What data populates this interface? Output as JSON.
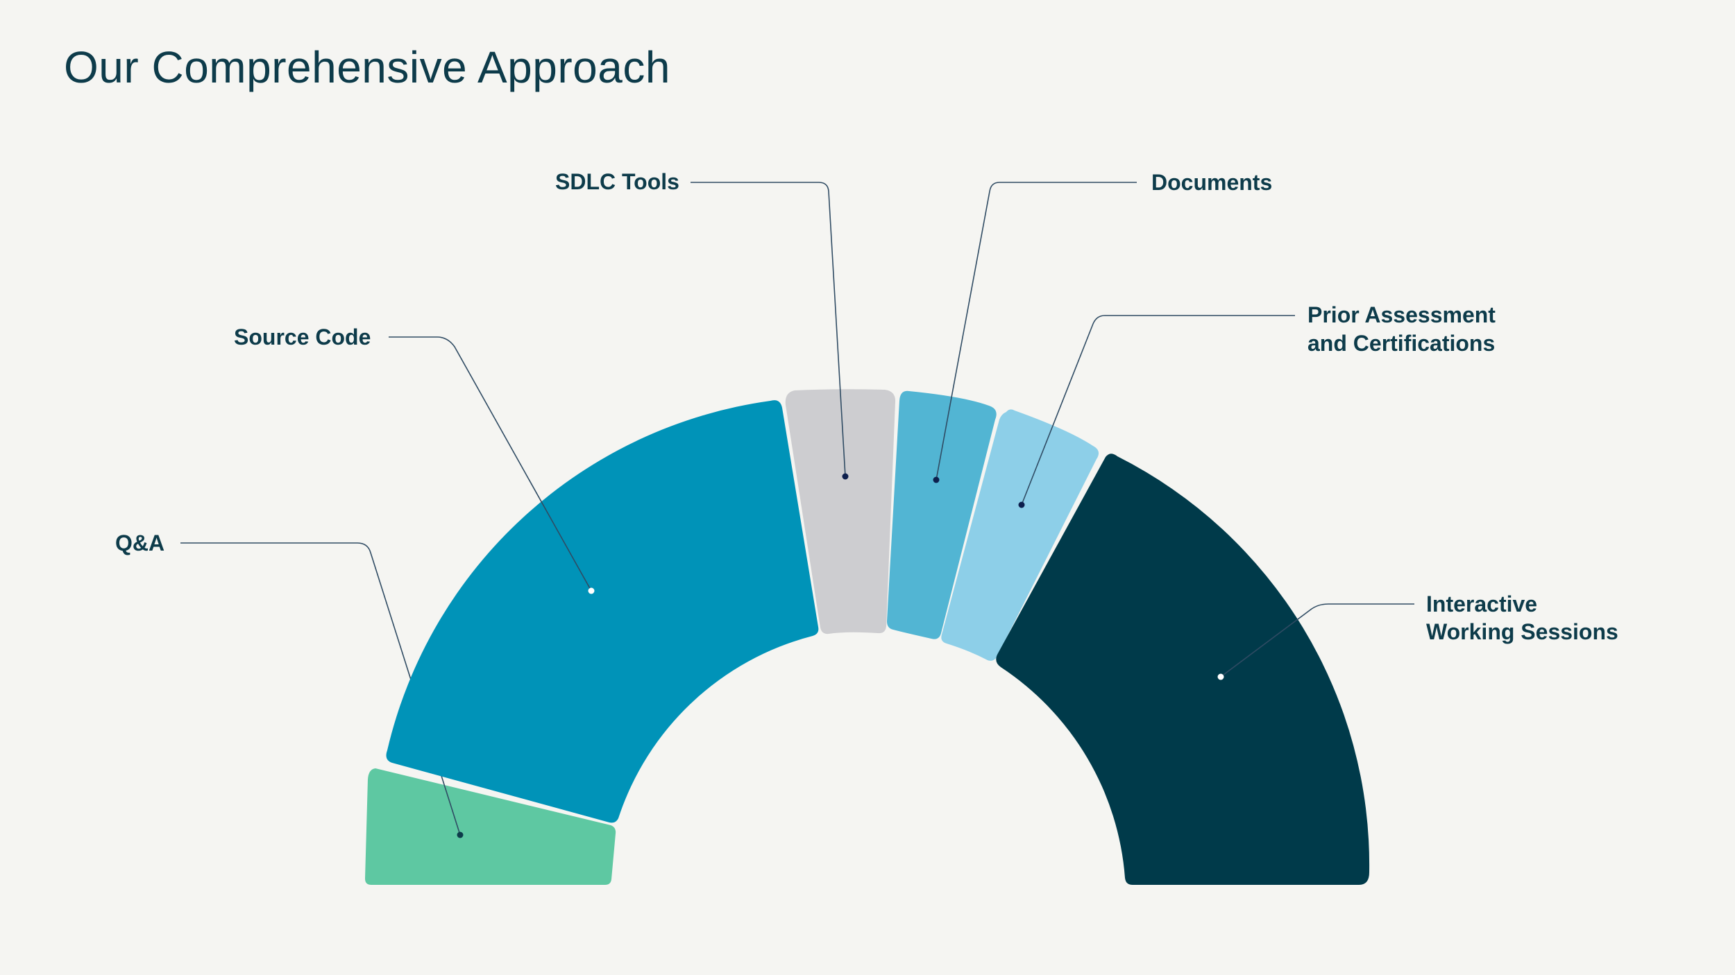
{
  "title": "Our Comprehensive Approach",
  "segments": [
    {
      "key": "qa",
      "label_lines": [
        "Q&A"
      ],
      "color": "#5ec8a2",
      "dot_color": "#0d3b4a"
    },
    {
      "key": "source",
      "label_lines": [
        "Source Code"
      ],
      "color": "#0093b8",
      "dot_color": "#ffffff"
    },
    {
      "key": "sdlc",
      "label_lines": [
        "SDLC Tools"
      ],
      "color": "#cdcdd0",
      "dot_color": "#0d1f4d"
    },
    {
      "key": "documents",
      "label_lines": [
        "Documents"
      ],
      "color": "#52b5d3",
      "dot_color": "#0d1f4d"
    },
    {
      "key": "prior",
      "label_lines": [
        "Prior Assessment",
        "and Certifications"
      ],
      "color": "#8dcfe8",
      "dot_color": "#0d1f4d"
    },
    {
      "key": "sessions",
      "label_lines": [
        "Interactive",
        "Working Sessions"
      ],
      "color": "#003a4a",
      "dot_color": "#ffffff"
    }
  ]
}
